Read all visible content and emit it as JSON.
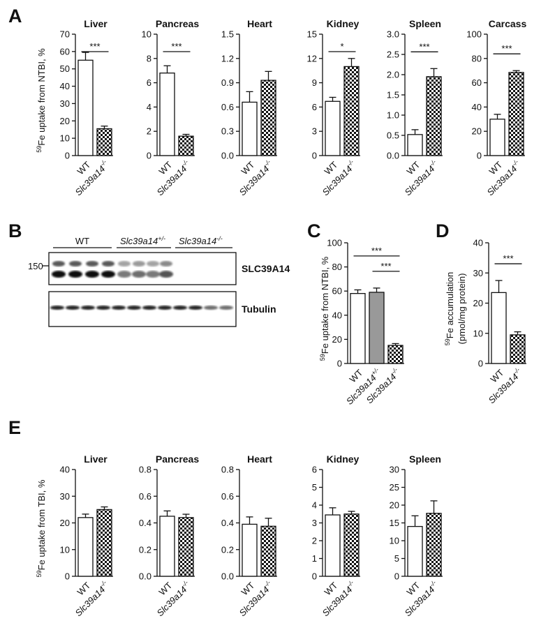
{
  "panel_labels": [
    "A",
    "B",
    "C",
    "D",
    "E"
  ],
  "blot": {
    "groups": [
      {
        "text": "WT",
        "sup": null
      },
      {
        "text": "Slc39a14",
        "sup": "+/-"
      },
      {
        "text": "Slc39a14",
        "sup": "-/-"
      }
    ],
    "marker": "150",
    "bands": [
      "SLC39A14",
      "Tubulin"
    ]
  },
  "chart_data": [
    {
      "type": "bar",
      "title": "Liver",
      "ylabel_sup": "59",
      "ylabel": [
        "Fe uptake from NTBI, %"
      ],
      "categories": [
        "WT",
        "Slc39a14"
      ],
      "category_superscripts": [
        null,
        "-/-"
      ],
      "values": [
        55,
        15.5
      ],
      "errors": [
        4.5,
        1.5
      ],
      "bar_styles": [
        "open",
        "checkered"
      ],
      "ylim": [
        0,
        70
      ],
      "yticks": [
        0,
        10,
        20,
        30,
        40,
        50,
        60,
        70
      ],
      "significance": [
        {
          "label": "***",
          "from": 0,
          "to": 1
        }
      ]
    },
    {
      "type": "bar",
      "title": "Pancreas",
      "categories": [
        "WT",
        "Slc39a14"
      ],
      "category_superscripts": [
        null,
        "-/-"
      ],
      "values": [
        6.8,
        1.6
      ],
      "errors": [
        0.6,
        0.15
      ],
      "bar_styles": [
        "open",
        "checkered"
      ],
      "ylim": [
        0,
        10
      ],
      "yticks": [
        0,
        2,
        4,
        6,
        8,
        10
      ],
      "significance": [
        {
          "label": "***",
          "from": 0,
          "to": 1
        }
      ]
    },
    {
      "type": "bar",
      "title": "Heart",
      "categories": [
        "WT",
        "Slc39a14"
      ],
      "category_superscripts": [
        null,
        "-/-"
      ],
      "values": [
        0.66,
        0.93
      ],
      "errors": [
        0.13,
        0.11
      ],
      "bar_styles": [
        "open",
        "checkered"
      ],
      "ylim": [
        0,
        1.5
      ],
      "yticks": [
        {
          "value": 0,
          "label": "0.0"
        },
        0.3,
        0.6,
        0.9,
        1.2,
        1.5
      ],
      "significance": []
    },
    {
      "type": "bar",
      "title": "Kidney",
      "categories": [
        "WT",
        "Slc39a14"
      ],
      "category_superscripts": [
        null,
        "-/-"
      ],
      "values": [
        6.7,
        11
      ],
      "errors": [
        0.5,
        1.0
      ],
      "bar_styles": [
        "open",
        "checkered"
      ],
      "ylim": [
        0,
        15
      ],
      "yticks": [
        0,
        3,
        6,
        9,
        12,
        15
      ],
      "significance": [
        {
          "label": "*",
          "from": 0,
          "to": 1
        }
      ]
    },
    {
      "type": "bar",
      "title": "Spleen",
      "categories": [
        "WT",
        "Slc39a14"
      ],
      "category_superscripts": [
        null,
        "-/-"
      ],
      "values": [
        0.52,
        1.95
      ],
      "errors": [
        0.12,
        0.2
      ],
      "bar_styles": [
        "open",
        "checkered"
      ],
      "ylim": [
        0,
        3
      ],
      "yticks": [
        {
          "value": 0,
          "label": "0.0"
        },
        0.5,
        {
          "value": 1,
          "label": "1.0"
        },
        1.5,
        {
          "value": 2,
          "label": "2.0"
        },
        2.5,
        {
          "value": 3,
          "label": "3.0"
        }
      ],
      "significance": [
        {
          "label": "***",
          "from": 0,
          "to": 1
        }
      ]
    },
    {
      "type": "bar",
      "title": "Carcass",
      "categories": [
        "WT",
        "Slc39a14"
      ],
      "category_superscripts": [
        null,
        "-/-"
      ],
      "values": [
        30,
        68.5
      ],
      "errors": [
        4,
        1.5
      ],
      "bar_styles": [
        "open",
        "checkered"
      ],
      "ylim": [
        0,
        100
      ],
      "yticks": [
        0,
        20,
        40,
        60,
        80,
        100
      ],
      "significance": [
        {
          "label": "***",
          "from": 0,
          "to": 1
        }
      ]
    },
    {
      "type": "bar",
      "ylabel_sup": "59",
      "ylabel": [
        "Fe uptake from NTBI, %"
      ],
      "categories": [
        "WT",
        "Slc39a14",
        "Slc39a14"
      ],
      "category_superscripts": [
        null,
        "+/-",
        "-/-"
      ],
      "values": [
        58,
        59,
        15
      ],
      "errors": [
        3,
        3.5,
        1.5
      ],
      "bar_styles": [
        "open",
        "gray",
        "checkered"
      ],
      "ylim": [
        0,
        100
      ],
      "yticks": [
        0,
        20,
        40,
        60,
        80,
        100
      ],
      "significance": [
        {
          "label": "***",
          "from": 0,
          "to": 2
        },
        {
          "label": "***",
          "from": 1,
          "to": 2
        }
      ]
    },
    {
      "type": "bar",
      "ylabel_sup": "59",
      "ylabel": [
        "Fe accumulation",
        "(pmol/mg protein)"
      ],
      "categories": [
        "WT",
        "Slc39a14"
      ],
      "category_superscripts": [
        null,
        "-/-"
      ],
      "values": [
        23.5,
        9.5
      ],
      "errors": [
        4,
        1
      ],
      "bar_styles": [
        "open",
        "checkered"
      ],
      "ylim": [
        0,
        40
      ],
      "yticks": [
        0,
        10,
        20,
        30,
        40
      ],
      "significance": [
        {
          "label": "***",
          "from": 0,
          "to": 1
        }
      ]
    },
    {
      "type": "bar",
      "title": "Liver",
      "ylabel_sup": "59",
      "ylabel": [
        "Fe uptake from  TBI, %"
      ],
      "categories": [
        "WT",
        "Slc39a14"
      ],
      "category_superscripts": [
        null,
        "-/-"
      ],
      "values": [
        22,
        25
      ],
      "errors": [
        1.3,
        1
      ],
      "bar_styles": [
        "open",
        "checkered"
      ],
      "ylim": [
        0,
        40
      ],
      "yticks": [
        0,
        10,
        20,
        30,
        40
      ],
      "significance": []
    },
    {
      "type": "bar",
      "title": "Pancreas",
      "categories": [
        "WT",
        "Slc39a14"
      ],
      "category_superscripts": [
        null,
        "-/-"
      ],
      "values": [
        0.45,
        0.44
      ],
      "errors": [
        0.04,
        0.025
      ],
      "bar_styles": [
        "open",
        "checkered"
      ],
      "ylim": [
        0,
        0.8
      ],
      "yticks": [
        {
          "value": 0,
          "label": "0.0"
        },
        0.2,
        0.4,
        0.6,
        0.8
      ],
      "significance": []
    },
    {
      "type": "bar",
      "title": "Heart",
      "categories": [
        "WT",
        "Slc39a14"
      ],
      "category_superscripts": [
        null,
        "-/-"
      ],
      "values": [
        0.39,
        0.375
      ],
      "errors": [
        0.055,
        0.06
      ],
      "bar_styles": [
        "open",
        "checkered"
      ],
      "ylim": [
        0,
        0.8
      ],
      "yticks": [
        {
          "value": 0,
          "label": "0.0"
        },
        0.2,
        0.4,
        0.6,
        0.8
      ],
      "significance": []
    },
    {
      "type": "bar",
      "title": "Kidney",
      "categories": [
        "WT",
        "Slc39a14"
      ],
      "category_superscripts": [
        null,
        "-/-"
      ],
      "values": [
        3.45,
        3.5
      ],
      "errors": [
        0.4,
        0.15
      ],
      "bar_styles": [
        "open",
        "checkered"
      ],
      "ylim": [
        0,
        6
      ],
      "yticks": [
        0,
        1,
        2,
        3,
        4,
        5,
        6
      ],
      "significance": []
    },
    {
      "type": "bar",
      "title": "Spleen",
      "categories": [
        "WT",
        "Slc39a14"
      ],
      "category_superscripts": [
        null,
        "-/-"
      ],
      "values": [
        14,
        17.7
      ],
      "errors": [
        3,
        3.5
      ],
      "bar_styles": [
        "open",
        "checkered"
      ],
      "ylim": [
        0,
        30
      ],
      "yticks": [
        0,
        5,
        10,
        15,
        20,
        25,
        30
      ],
      "significance": []
    }
  ]
}
